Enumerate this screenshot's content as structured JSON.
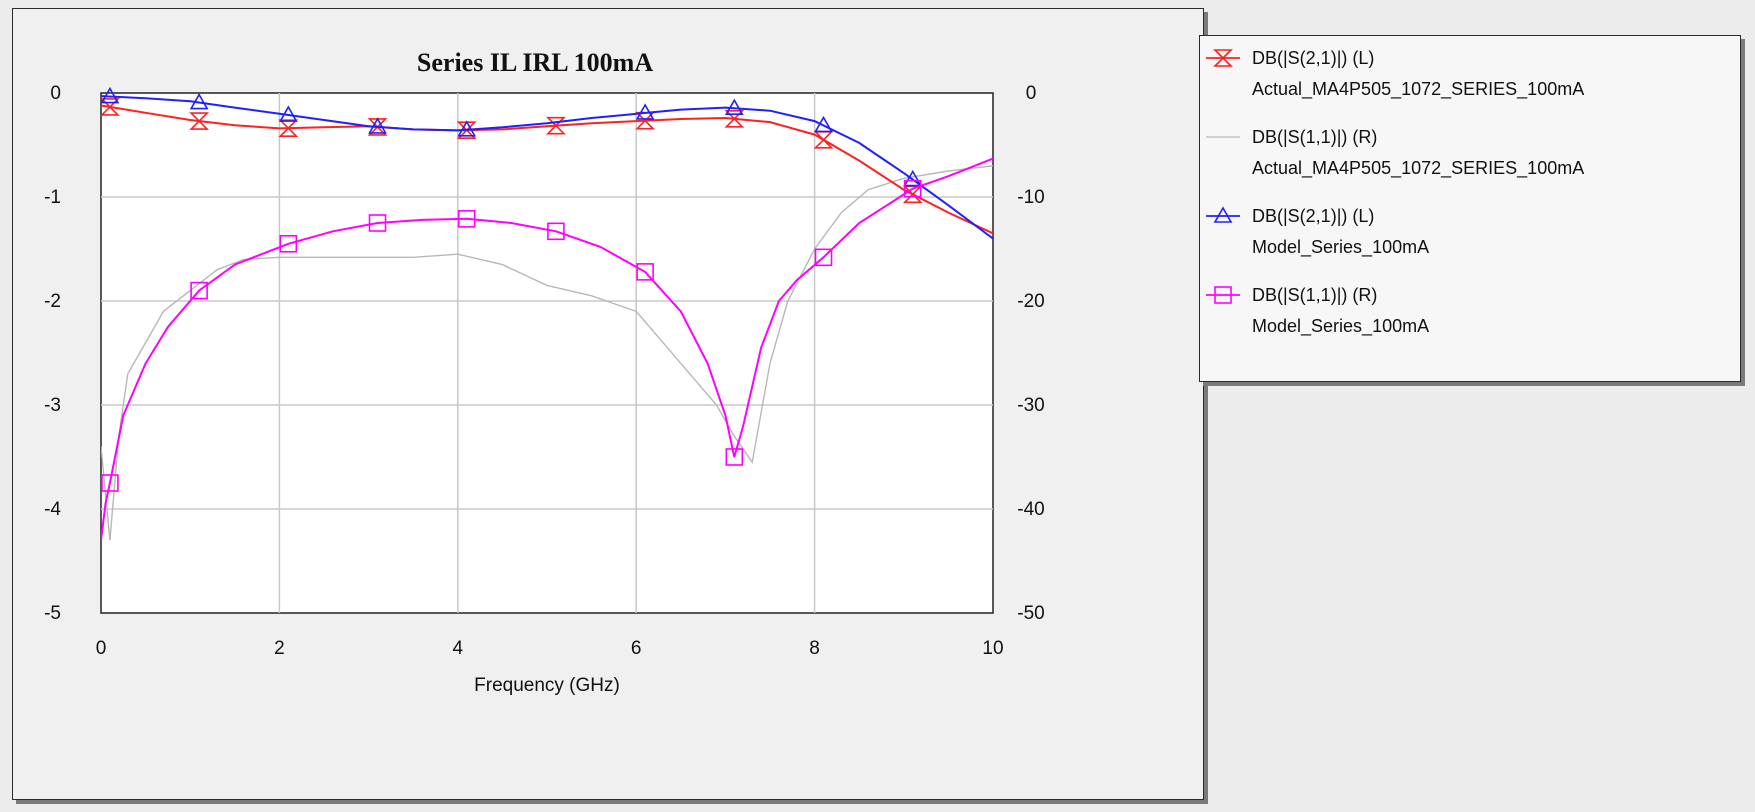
{
  "chart_data": {
    "type": "line",
    "title": "Series IL IRL 100mA",
    "xlabel": "Frequency (GHz)",
    "xlim": [
      0,
      10
    ],
    "ylim_left": [
      -5,
      0
    ],
    "ylim_right": [
      -50,
      0
    ],
    "x_ticks": [
      "0",
      "2",
      "4",
      "6",
      "8",
      "10"
    ],
    "y_ticks_left": [
      "0",
      "-1",
      "-2",
      "-3",
      "-4",
      "-5"
    ],
    "y_ticks_right": [
      "0",
      "-10",
      "-20",
      "-30",
      "-40",
      "-50"
    ],
    "grid": true,
    "legend_position": "right",
    "series": [
      {
        "name": "DB(|S(2,1)|) (L)",
        "subtitle": "Actual_MA4P505_1072_SERIES_100mA",
        "axis": "left",
        "color": "#ff2020",
        "marker": "hourglass",
        "x": [
          0.0,
          0.5,
          1.0,
          1.5,
          2.0,
          2.5,
          3.0,
          3.5,
          4.0,
          4.5,
          5.0,
          5.5,
          6.0,
          6.5,
          7.0,
          7.5,
          8.0,
          8.5,
          9.0,
          9.5,
          10.0
        ],
        "y": [
          -0.12,
          -0.19,
          -0.26,
          -0.31,
          -0.34,
          -0.33,
          -0.32,
          -0.35,
          -0.36,
          -0.35,
          -0.32,
          -0.29,
          -0.27,
          -0.25,
          -0.24,
          -0.28,
          -0.4,
          -0.65,
          -0.93,
          -1.15,
          -1.35
        ],
        "markers_x": [
          0.1,
          1.1,
          2.1,
          3.1,
          4.1,
          5.1,
          6.1,
          7.1,
          8.1,
          9.1
        ]
      },
      {
        "name": "DB(|S(1,1)|) (R)",
        "subtitle": "Actual_MA4P505_1072_SERIES_100mA",
        "axis": "right",
        "color": "#b8b8b8",
        "marker": "none",
        "x": [
          0.0,
          0.1,
          0.2,
          0.3,
          0.5,
          0.7,
          1.0,
          1.3,
          1.6,
          2.0,
          2.5,
          3.0,
          3.5,
          4.0,
          4.5,
          5.0,
          5.5,
          6.0,
          6.3,
          6.6,
          6.9,
          7.1,
          7.3,
          7.5,
          7.7,
          8.0,
          8.3,
          8.6,
          9.0,
          9.5,
          10.0
        ],
        "y": [
          -34,
          -43,
          -33,
          -27,
          -24,
          -21,
          -19,
          -17,
          -16,
          -15.8,
          -15.8,
          -15.8,
          -15.8,
          -15.5,
          -16.5,
          -18.5,
          -19.5,
          -21,
          -24,
          -27,
          -30,
          -33,
          -35.5,
          -26,
          -20,
          -15,
          -11.5,
          -9.3,
          -8.2,
          -7.5,
          -7
        ]
      },
      {
        "name": "DB(|S(2,1)|) (L)",
        "subtitle": "Model_Series_100mA",
        "axis": "left",
        "color": "#2020ff",
        "marker": "triangle",
        "x": [
          0.0,
          0.5,
          1.0,
          1.5,
          2.0,
          2.5,
          3.0,
          3.5,
          4.0,
          4.5,
          5.0,
          5.5,
          6.0,
          6.5,
          7.0,
          7.5,
          8.0,
          8.5,
          9.0,
          9.5,
          10.0
        ],
        "y": [
          -0.03,
          -0.05,
          -0.08,
          -0.14,
          -0.2,
          -0.26,
          -0.32,
          -0.35,
          -0.36,
          -0.33,
          -0.29,
          -0.24,
          -0.2,
          -0.16,
          -0.14,
          -0.17,
          -0.27,
          -0.48,
          -0.77,
          -1.08,
          -1.4
        ],
        "markers_x": [
          0.1,
          1.1,
          2.1,
          3.1,
          4.1,
          6.1,
          7.1,
          8.1,
          9.1
        ]
      },
      {
        "name": "DB(|S(1,1)|) (R)",
        "subtitle": "Model_Series_100mA",
        "axis": "right",
        "color": "#ff00ff",
        "marker": "square",
        "x": [
          0.0,
          0.05,
          0.1,
          0.25,
          0.5,
          0.75,
          1.1,
          1.5,
          2.1,
          2.6,
          3.1,
          3.6,
          4.1,
          4.6,
          5.1,
          5.6,
          6.1,
          6.5,
          6.8,
          7.0,
          7.1,
          7.2,
          7.4,
          7.6,
          7.8,
          8.1,
          8.5,
          9.1,
          9.5,
          10.0
        ],
        "y": [
          -43,
          -39.5,
          -37.5,
          -31,
          -26,
          -22.5,
          -19,
          -16.5,
          -14.5,
          -13.3,
          -12.5,
          -12.2,
          -12.1,
          -12.5,
          -13.3,
          -14.8,
          -17.2,
          -21,
          -26,
          -31,
          -35,
          -32,
          -24.5,
          -20,
          -18,
          -15.8,
          -12.5,
          -9.2,
          -8,
          -6.3
        ],
        "markers_x": [
          0.1,
          1.1,
          2.1,
          3.1,
          4.1,
          5.1,
          6.1,
          7.1,
          8.1,
          9.1
        ]
      }
    ]
  }
}
